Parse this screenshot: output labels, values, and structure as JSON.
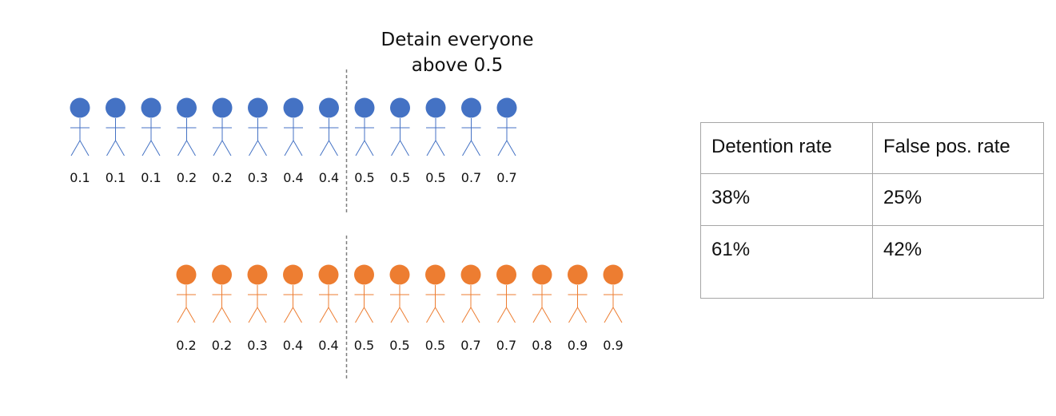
{
  "title": {
    "line1": "Detain everyone",
    "line2": "above 0.5"
  },
  "groups": [
    {
      "name": "blue-group",
      "color": "#4472c4",
      "scores": [
        "0.1",
        "0.1",
        "0.1",
        "0.2",
        "0.2",
        "0.3",
        "0.4",
        "0.4",
        "0.5",
        "0.5",
        "0.5",
        "0.7",
        "0.7"
      ]
    },
    {
      "name": "orange-group",
      "color": "#ed7d31",
      "scores": [
        "0.2",
        "0.2",
        "0.3",
        "0.4",
        "0.4",
        "0.5",
        "0.5",
        "0.5",
        "0.7",
        "0.7",
        "0.8",
        "0.9",
        "0.9"
      ]
    }
  ],
  "table": {
    "headers": [
      "Detention rate",
      "False pos. rate"
    ],
    "rows": [
      [
        "38%",
        "25%"
      ],
      [
        "61%",
        "42%"
      ]
    ]
  }
}
